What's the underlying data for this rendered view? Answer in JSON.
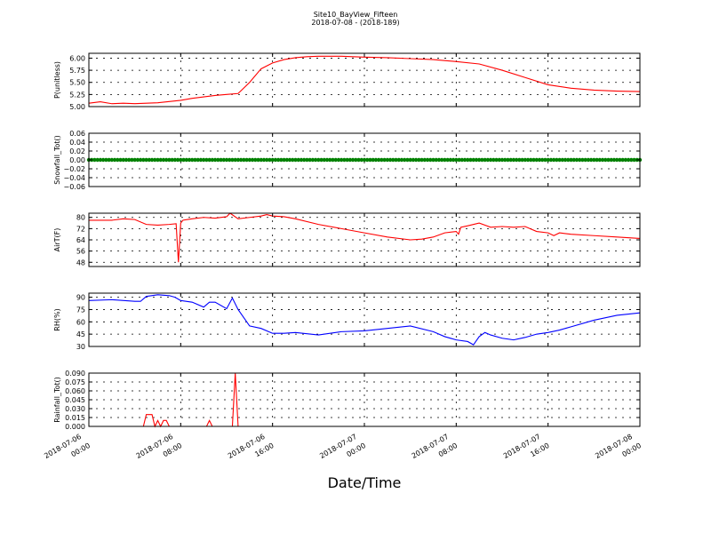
{
  "figure": {
    "title": "Site10_BayView_Fifteen",
    "subtitle": "2018-07-08 - (2018-189)",
    "xlabel": "Date/Time"
  },
  "chart_data": [
    {
      "type": "line",
      "ylabel": "P(unitless)",
      "ylim": [
        5.0,
        6.1
      ],
      "yticks": [
        "5.00",
        "5.25",
        "5.50",
        "5.75",
        "6.00"
      ],
      "ytick_values": [
        5.0,
        5.25,
        5.5,
        5.75,
        6.0
      ],
      "color": "#ff0000",
      "grid": true,
      "x": [
        0,
        1,
        2,
        3,
        4,
        6,
        8,
        9,
        10,
        11,
        12,
        13,
        14,
        15,
        16,
        17,
        18,
        19,
        20,
        22,
        24,
        26,
        28,
        30,
        32,
        34,
        36,
        38,
        40,
        42,
        44,
        46,
        48
      ],
      "y": [
        5.07,
        5.1,
        5.06,
        5.07,
        5.06,
        5.08,
        5.13,
        5.17,
        5.2,
        5.23,
        5.25,
        5.27,
        5.5,
        5.78,
        5.9,
        5.97,
        6.01,
        6.03,
        6.04,
        6.04,
        6.02,
        6.01,
        5.99,
        5.97,
        5.93,
        5.88,
        5.75,
        5.6,
        5.45,
        5.38,
        5.34,
        5.32,
        5.31
      ]
    },
    {
      "type": "scatter",
      "ylabel": "Snowfall_Tot()",
      "ylim": [
        -0.06,
        0.06
      ],
      "yticks": [
        "0.06",
        "0.04",
        "0.02",
        "0.00",
        "−0.02",
        "−0.04",
        "−0.06"
      ],
      "ytick_values": [
        0.06,
        0.04,
        0.02,
        0.0,
        -0.02,
        -0.04,
        -0.06
      ],
      "color": "#008000",
      "grid": true,
      "x_step": 0.25,
      "constant_value": 0.0
    },
    {
      "type": "line",
      "ylabel": "AirT(F)",
      "ylim": [
        45,
        83
      ],
      "yticks": [
        "80",
        "72",
        "64",
        "56",
        "48"
      ],
      "ytick_values": [
        80,
        72,
        64,
        56,
        48
      ],
      "color": "#ff0000",
      "grid": true,
      "x": [
        0,
        2,
        3,
        4,
        5,
        6,
        7,
        7.6,
        7.8,
        8,
        8.2,
        9,
        10,
        11,
        12,
        12.3,
        13,
        14,
        15,
        15.5,
        16,
        17,
        18,
        20,
        22,
        24,
        26,
        28,
        29,
        30,
        31,
        32,
        32.2,
        32.4,
        33,
        34,
        35,
        36,
        37,
        38,
        39,
        40,
        40.5,
        41,
        42,
        44,
        46,
        48
      ],
      "y": [
        78,
        78,
        79,
        78.5,
        75,
        74.5,
        75,
        75.5,
        48,
        76,
        78,
        79,
        80,
        79.5,
        80.5,
        83,
        79,
        80,
        81,
        82,
        81,
        80.5,
        79,
        75,
        72,
        69,
        66,
        64,
        64.5,
        66,
        69,
        70,
        68,
        73,
        74,
        76,
        73,
        73.5,
        73,
        73.5,
        70,
        69,
        67,
        69,
        68,
        67,
        66,
        65
      ]
    },
    {
      "type": "line",
      "ylabel": "RH(%)",
      "ylim": [
        30,
        95
      ],
      "yticks": [
        "90",
        "75",
        "60",
        "45",
        "30"
      ],
      "ytick_values": [
        90,
        75,
        60,
        45,
        30
      ],
      "color": "#0000ff",
      "grid": true,
      "x": [
        0,
        2,
        4,
        4.5,
        5,
        6,
        7,
        7.5,
        8,
        9,
        10,
        10.5,
        11,
        12,
        12.5,
        13,
        13.5,
        14,
        15,
        16,
        17,
        18,
        20,
        22,
        24,
        26,
        28,
        30,
        31,
        32,
        33,
        33.5,
        34,
        34.5,
        35,
        36,
        37,
        38,
        39,
        40,
        41,
        42,
        44,
        46,
        48
      ],
      "y": [
        86,
        87,
        85,
        85,
        91,
        93,
        92,
        90,
        86,
        84,
        78,
        84,
        84,
        76,
        89,
        75,
        65,
        55,
        52,
        46,
        46,
        47,
        44,
        48,
        49,
        52,
        55,
        48,
        42,
        38,
        36,
        32,
        42,
        47,
        44,
        40,
        38,
        41,
        45,
        47,
        50,
        54,
        62,
        68,
        71
      ]
    },
    {
      "type": "line",
      "ylabel": "Rainfall_Tot()",
      "ylim": [
        0,
        0.09
      ],
      "yticks": [
        "0.090",
        "0.075",
        "0.060",
        "0.045",
        "0.030",
        "0.015",
        "0.000"
      ],
      "ytick_values": [
        0.09,
        0.075,
        0.06,
        0.045,
        0.03,
        0.015,
        0.0
      ],
      "color": "#ff0000",
      "grid": true,
      "x": [
        0,
        4.75,
        5,
        5.5,
        5.75,
        6,
        6.25,
        6.5,
        6.75,
        7,
        10.25,
        10.5,
        10.75,
        12.5,
        12.75,
        13,
        48
      ],
      "y": [
        0,
        0,
        0.02,
        0.02,
        0,
        0.01,
        0,
        0.01,
        0.01,
        0,
        0,
        0.01,
        0,
        0,
        0.09,
        0,
        0
      ]
    }
  ],
  "x_axis": {
    "range_hours": [
      0,
      48
    ],
    "tick_hours": [
      0,
      8,
      16,
      24,
      32,
      40,
      48
    ],
    "tick_labels": [
      [
        "2018-07-06",
        "00:00"
      ],
      [
        "2018-07-06",
        "08:00"
      ],
      [
        "2018-07-06",
        "16:00"
      ],
      [
        "2018-07-07",
        "00:00"
      ],
      [
        "2018-07-07",
        "08:00"
      ],
      [
        "2018-07-07",
        "16:00"
      ],
      [
        "2018-07-08",
        "00:00"
      ]
    ]
  }
}
